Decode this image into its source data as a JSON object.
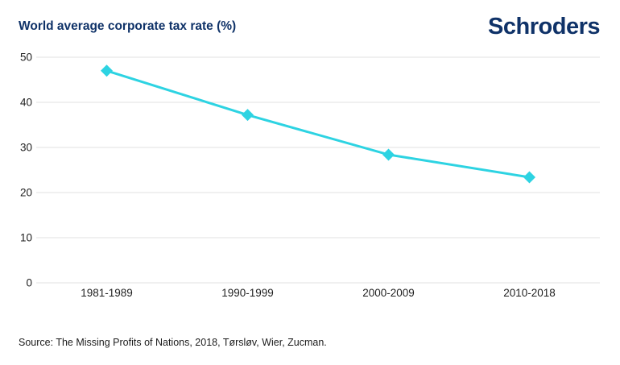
{
  "page": {
    "title": "World average corporate tax rate (%)",
    "logo_text": "Schroders",
    "source": "Source: The Missing Profits of Nations, 2018, Tørsløv, Wier, Zucman."
  },
  "colors": {
    "navy": "#0f3268",
    "line_cyan": "#2dd3e2",
    "gridline": "#e2e2e2",
    "axis_text": "#1f1f1f"
  },
  "chart_data": {
    "type": "line",
    "title": "World average corporate tax rate (%)",
    "categories": [
      "1981-1989",
      "1990-1999",
      "2000-2009",
      "2010-2018"
    ],
    "series": [
      {
        "name": "World average corporate tax rate (%)",
        "values": [
          47,
          37.2,
          28.4,
          23.4
        ]
      }
    ],
    "xlabel": "",
    "ylabel": "",
    "ylim": [
      0,
      50
    ],
    "yticks": [
      0,
      10,
      20,
      30,
      40,
      50
    ],
    "grid": "horizontal",
    "legend": "none",
    "marker": "diamond",
    "annotation": "Source: The Missing Profits of Nations, 2018, Tørsløv, Wier, Zucman."
  }
}
